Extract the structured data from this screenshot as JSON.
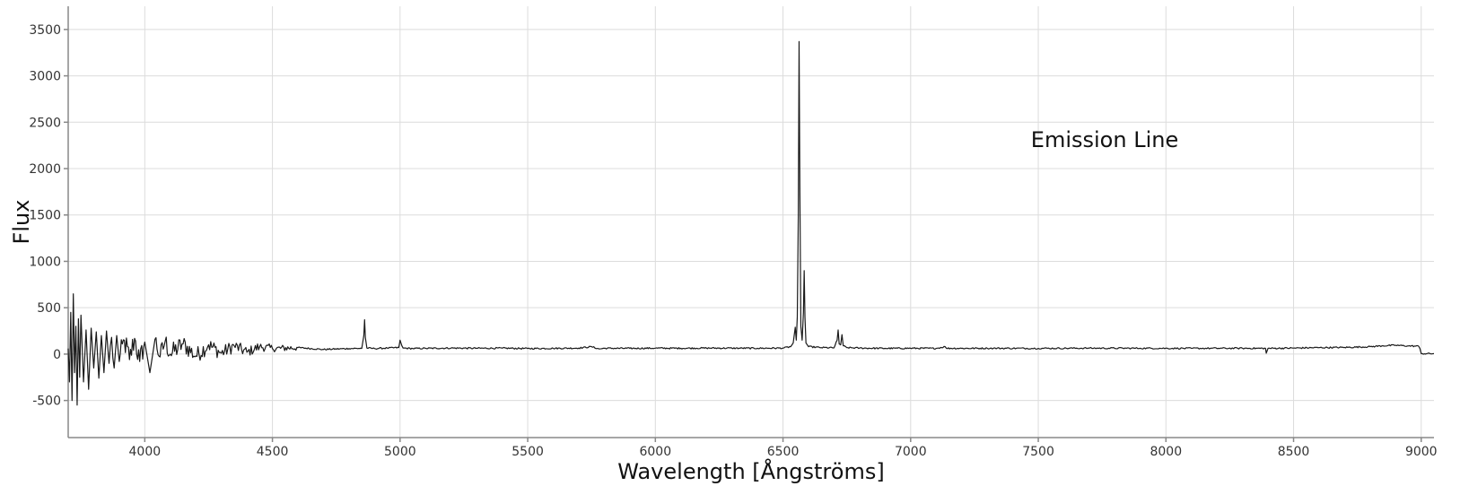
{
  "chart_data": {
    "type": "line",
    "title": "",
    "xlabel": "Wavelength [Ångströms]",
    "ylabel": "Flux",
    "xlim": [
      3700,
      9050
    ],
    "ylim": [
      -900,
      3750
    ],
    "xticks": [
      4000,
      4500,
      5000,
      5500,
      6000,
      6500,
      7000,
      7500,
      8000,
      8500,
      9000
    ],
    "yticks": [
      -500,
      0,
      500,
      1000,
      1500,
      2000,
      2500,
      3000,
      3500
    ],
    "grid": true,
    "annotations": [
      {
        "text": "Emission Line",
        "x": 7760,
        "y": 2230
      }
    ],
    "colors": {
      "line": "#1a1a1a",
      "grid": "#dcdcdc",
      "axis": "#888888"
    },
    "series": [
      {
        "x": [
          3700,
          3705,
          3710,
          3715,
          3720,
          3725,
          3730,
          3735,
          3740,
          3745,
          3750,
          3760,
          3770,
          3780,
          3790,
          3800,
          3810,
          3820,
          3830,
          3840,
          3850,
          3860,
          3870,
          3880,
          3890,
          3900,
          3920,
          3940,
          3960,
          3980,
          4000,
          4020,
          4040,
          4060,
          4080,
          4100,
          4150,
          4200,
          4250,
          4300,
          4350,
          4400,
          4450,
          4500,
          4600,
          4700,
          4800,
          4850,
          4858,
          4861,
          4864,
          4870,
          4900,
          4950,
          4995,
          5000,
          5007,
          5012,
          5050,
          5100,
          5200,
          5300,
          5400,
          5500,
          5600,
          5700,
          5750,
          5780,
          5800,
          5900,
          6000,
          6100,
          6200,
          6300,
          6400,
          6500,
          6530,
          6540,
          6548,
          6552,
          6556,
          6560,
          6563,
          6566,
          6570,
          6575,
          6580,
          6583,
          6586,
          6590,
          6600,
          6650,
          6700,
          6712,
          6716,
          6720,
          6726,
          6731,
          6736,
          6750,
          6800,
          6900,
          7000,
          7100,
          7135,
          7140,
          7200,
          7300,
          7500,
          7700,
          7900,
          8100,
          8300,
          8390,
          8393,
          8400,
          8500,
          8600,
          8700,
          8800,
          8850,
          8900,
          8950,
          8990,
          8995,
          9000,
          9050
        ],
        "values": [
          60,
          -300,
          450,
          -500,
          650,
          -200,
          300,
          -550,
          380,
          -250,
          420,
          -300,
          260,
          -380,
          280,
          -150,
          240,
          -260,
          200,
          -200,
          250,
          -100,
          180,
          -150,
          200,
          -80,
          150,
          -60,
          170,
          -80,
          130,
          -200,
          160,
          -30,
          140,
          0,
          110,
          -20,
          100,
          10,
          90,
          20,
          80,
          60,
          70,
          50,
          60,
          62,
          200,
          370,
          180,
          65,
          60,
          65,
          70,
          150,
          90,
          65,
          60,
          62,
          65,
          63,
          64,
          60,
          62,
          65,
          80,
          55,
          63,
          62,
          64,
          63,
          65,
          64,
          63,
          65,
          80,
          120,
          290,
          150,
          400,
          1500,
          3370,
          1800,
          300,
          150,
          450,
          900,
          400,
          120,
          80,
          70,
          68,
          150,
          260,
          110,
          100,
          210,
          90,
          70,
          65,
          62,
          63,
          62,
          80,
          63,
          62,
          63,
          62,
          64,
          63,
          62,
          63,
          62,
          10,
          62,
          65,
          70,
          72,
          80,
          90,
          95,
          88,
          85,
          60,
          5,
          5
        ]
      }
    ]
  }
}
